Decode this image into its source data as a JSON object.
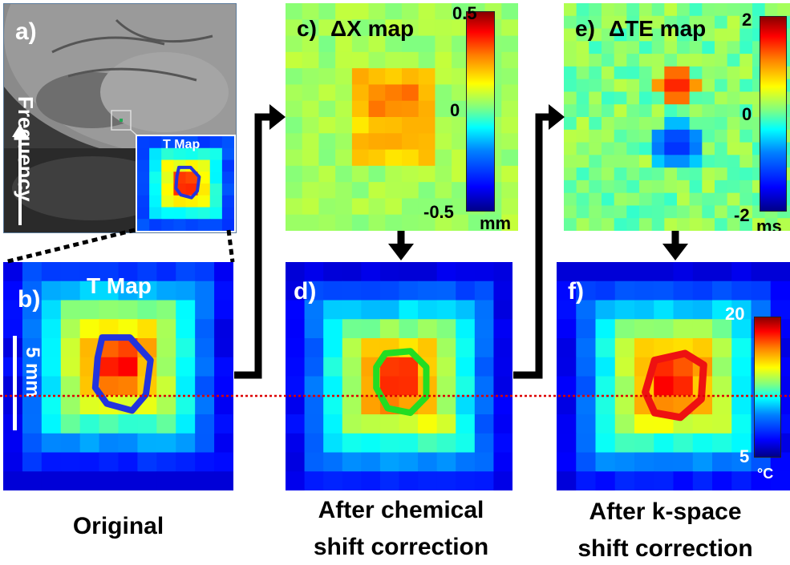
{
  "panels": {
    "a": {
      "label": "a)",
      "axis_label": "Frequency",
      "inset_title": "T Map"
    },
    "b": {
      "label": "b)",
      "title": "T Map",
      "scale_label": "5 mm",
      "caption": "Original"
    },
    "c": {
      "label": "c)",
      "title": "ΔX map",
      "colorbar": {
        "max": "0.5",
        "mid": "0",
        "min": "-0.5",
        "unit": "mm"
      }
    },
    "d": {
      "label": "d)",
      "caption_line1": "After chemical",
      "caption_line2": "shift correction"
    },
    "e": {
      "label": "e)",
      "title": "ΔTE map",
      "colorbar": {
        "max": "2",
        "mid": "0",
        "min": "-2",
        "unit": "ms"
      }
    },
    "f": {
      "label": "f)",
      "caption_line1": "After k-space",
      "caption_line2": "shift correction",
      "colorbar": {
        "max": "20",
        "min": "5",
        "unit": "°C"
      }
    }
  },
  "colors": {
    "contour_b": "#2233dd",
    "contour_d": "#22dd22",
    "contour_f": "#ee1111",
    "reference_line": "#dd0000"
  }
}
